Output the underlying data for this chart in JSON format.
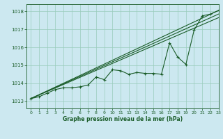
{
  "title": "Graphe pression niveau de la mer (hPa)",
  "bg_color": "#cce8f0",
  "grid_color": "#99ccbb",
  "line_color": "#1a5c28",
  "xlim": [
    -0.5,
    23
  ],
  "ylim": [
    1012.6,
    1018.4
  ],
  "yticks": [
    1013,
    1014,
    1015,
    1016,
    1017,
    1018
  ],
  "xticks": [
    0,
    1,
    2,
    3,
    4,
    5,
    6,
    7,
    8,
    9,
    10,
    11,
    12,
    13,
    14,
    15,
    16,
    17,
    18,
    19,
    20,
    21,
    22,
    23
  ],
  "straight_lines": [
    [
      [
        0,
        23
      ],
      [
        1013.15,
        1018.05
      ]
    ],
    [
      [
        0,
        23
      ],
      [
        1013.15,
        1017.85
      ]
    ],
    [
      [
        0,
        23
      ],
      [
        1013.15,
        1017.65
      ]
    ]
  ],
  "zigzag": [
    1013.15,
    1013.25,
    1013.45,
    1013.65,
    1013.75,
    1013.75,
    1013.8,
    1013.9,
    1014.35,
    1014.2,
    1014.75,
    1014.7,
    1014.5,
    1014.6,
    1014.55,
    1014.55,
    1014.5,
    1016.25,
    1015.45,
    1015.05,
    1016.95,
    1017.75,
    1017.85,
    1018.05
  ]
}
